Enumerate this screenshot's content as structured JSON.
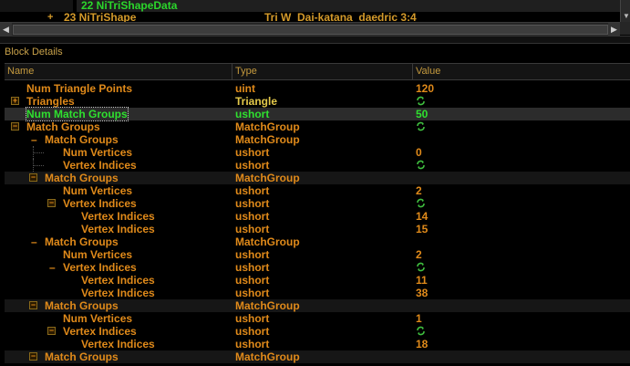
{
  "top_tree": {
    "row1_label": "22 NiTriShapeData",
    "row2_expander": "+",
    "row2_label": "23 NiTriShape",
    "row2_name": "Tri W_Dai-katana_daedric 3:4"
  },
  "details": {
    "title": "Block Details",
    "columns": {
      "name": "Name",
      "type": "Type",
      "value": "Value"
    },
    "rows": [
      {
        "name": "Num Triangle Points",
        "type": "uint",
        "value": "120"
      },
      {
        "name": "Triangles",
        "type": "Triangle",
        "value": ""
      },
      {
        "name": "Num Match Groups",
        "type": "ushort",
        "value": "50"
      },
      {
        "name": "Match Groups",
        "type": "MatchGroup",
        "value": ""
      },
      {
        "name": "Match Groups",
        "type": "MatchGroup",
        "value": ""
      },
      {
        "name": "Num Vertices",
        "type": "ushort",
        "value": "0"
      },
      {
        "name": "Vertex Indices",
        "type": "ushort",
        "value": ""
      },
      {
        "name": "Match Groups",
        "type": "MatchGroup",
        "value": ""
      },
      {
        "name": "Num Vertices",
        "type": "ushort",
        "value": "2"
      },
      {
        "name": "Vertex Indices",
        "type": "ushort",
        "value": ""
      },
      {
        "name": "Vertex Indices",
        "type": "ushort",
        "value": "14"
      },
      {
        "name": "Vertex Indices",
        "type": "ushort",
        "value": "15"
      },
      {
        "name": "Match Groups",
        "type": "MatchGroup",
        "value": ""
      },
      {
        "name": "Num Vertices",
        "type": "ushort",
        "value": "2"
      },
      {
        "name": "Vertex Indices",
        "type": "ushort",
        "value": ""
      },
      {
        "name": "Vertex Indices",
        "type": "ushort",
        "value": "11"
      },
      {
        "name": "Vertex Indices",
        "type": "ushort",
        "value": "38"
      },
      {
        "name": "Match Groups",
        "type": "MatchGroup",
        "value": ""
      },
      {
        "name": "Num Vertices",
        "type": "ushort",
        "value": "1"
      },
      {
        "name": "Vertex Indices",
        "type": "ushort",
        "value": ""
      },
      {
        "name": "Vertex Indices",
        "type": "ushort",
        "value": "18"
      },
      {
        "name": "Match Groups",
        "type": "MatchGroup",
        "value": ""
      }
    ]
  },
  "colors": {
    "accent_orange": "#e08a1a",
    "selected_green": "#2fe02f",
    "type_yellow": "#e3c84a",
    "edit_icon_green": "#3fbf3f"
  },
  "icons": {
    "edit_icon": "array-edit-icon",
    "collapse_icon": "minus-box-icon",
    "expand_icon": "plus-box-icon"
  }
}
